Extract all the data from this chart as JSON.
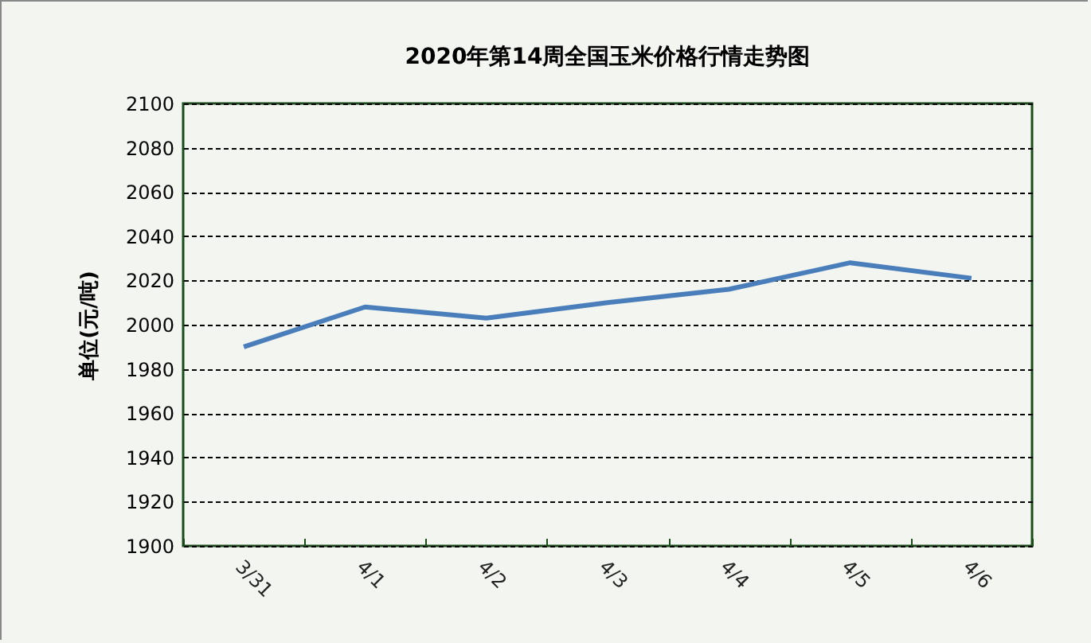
{
  "chart_data": {
    "type": "line",
    "title": "2020年第14周全国玉米价格行情走势图",
    "ylabel": "单位(元/吨)",
    "categories": [
      "3/31",
      "4/1",
      "4/2",
      "4/3",
      "4/4",
      "4/5",
      "4/6"
    ],
    "series": [
      {
        "color": "#4a7ebb",
        "values": [
          1990,
          2008,
          2003,
          2010,
          2016,
          2028,
          2021
        ]
      }
    ],
    "ylim": [
      1900,
      2100
    ],
    "yticks": [
      1900,
      1920,
      1940,
      1960,
      1980,
      2000,
      2020,
      2040,
      2060,
      2080,
      2100
    ],
    "grid": "y",
    "legend": false,
    "marker": "none",
    "line_style": "solid"
  }
}
